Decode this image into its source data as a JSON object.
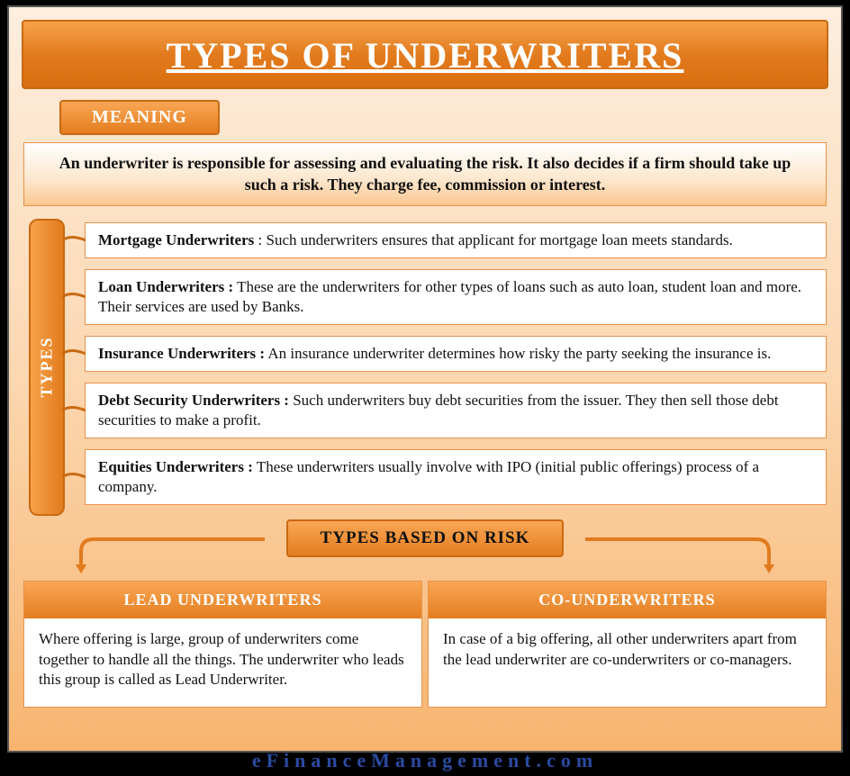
{
  "title": "TYPES OF UNDERWRITERS",
  "meaning_label": "MEANING",
  "meaning_text": "An underwriter is responsible for assessing and evaluating the risk. It also decides if a firm should take up such a risk. They charge fee, commission or interest.",
  "types_label": "TYPES",
  "types": [
    {
      "name": "Mortgage Underwriters",
      "sep": " : ",
      "desc": "Such underwriters ensures that applicant for mortgage loan meets standards."
    },
    {
      "name": "Loan Underwriters :",
      "sep": " ",
      "desc": "These are the underwriters for other types of loans such as auto loan, student loan and more. Their services are used by Banks."
    },
    {
      "name": "Insurance Underwriters :",
      "sep": " ",
      "desc": "An insurance underwriter determines how risky the party seeking the insurance is."
    },
    {
      "name": "Debt Security Underwriters :",
      "sep": " ",
      "desc": "Such underwriters buy debt securities from the issuer. They then sell those debt securities to make a profit."
    },
    {
      "name": "Equities Underwriters :",
      "sep": " ",
      "desc": "These underwriters usually involve with IPO (initial public offerings) process of a company."
    }
  ],
  "risk_label": "TYPES BASED ON RISK",
  "risk_columns": [
    {
      "head": "LEAD UNDERWRITERS",
      "body": "Where offering is large, group of underwriters come together to handle all the things. The underwriter who leads this group is called as Lead Underwriter."
    },
    {
      "head": "CO-UNDERWRITERS",
      "body": "In case of a big offering, all other underwriters apart from the lead underwriter are co-underwriters or co-managers."
    }
  ],
  "footer": "eFinanceManagement.com",
  "colors": {
    "accent_light": "#f9a755",
    "accent_dark": "#e27b1e",
    "border": "#c96a12",
    "arrow": "#e27b1e"
  }
}
